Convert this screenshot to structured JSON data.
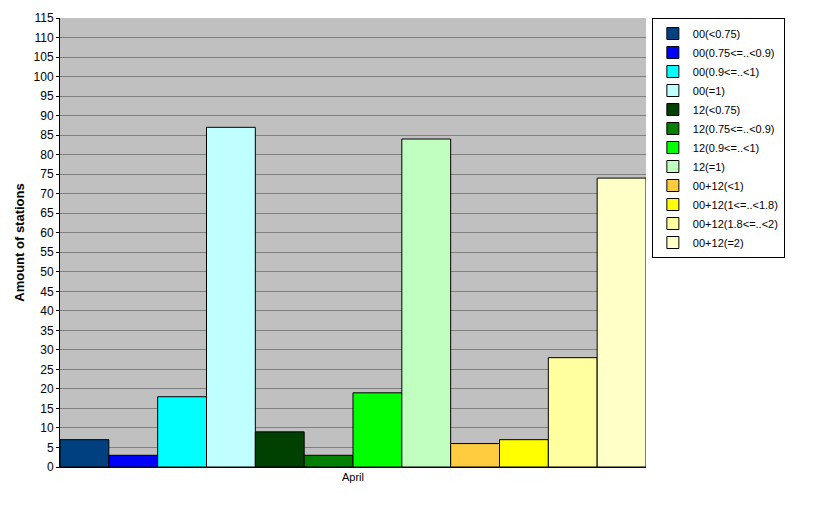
{
  "chart_data": {
    "type": "bar",
    "ylabel": "Amount of stations",
    "categories": [
      "April"
    ],
    "series": [
      {
        "name": "00(<0.75)",
        "color": "#004080",
        "values": [
          7
        ]
      },
      {
        "name": "00(0.75<=..<0.9)",
        "color": "#0000ff",
        "values": [
          3
        ]
      },
      {
        "name": "00(0.9<=..<1)",
        "color": "#00ffff",
        "values": [
          18
        ]
      },
      {
        "name": "00(=1)",
        "color": "#c0ffff",
        "values": [
          87
        ]
      },
      {
        "name": "12(<0.75)",
        "color": "#004000",
        "values": [
          9
        ]
      },
      {
        "name": "12(0.75<=..<0.9)",
        "color": "#008000",
        "values": [
          3
        ]
      },
      {
        "name": "12(0.9<=..<1)",
        "color": "#00ff00",
        "values": [
          19
        ]
      },
      {
        "name": "12(=1)",
        "color": "#c0ffc0",
        "values": [
          84
        ]
      },
      {
        "name": "00+12(<1)",
        "color": "#ffcc40",
        "values": [
          6
        ]
      },
      {
        "name": "00+12(1<=..<1.8)",
        "color": "#ffff00",
        "values": [
          7
        ]
      },
      {
        "name": "00+12(1.8<=..<2)",
        "color": "#ffffa0",
        "values": [
          28
        ]
      },
      {
        "name": "00+12(=2)",
        "color": "#ffffc8",
        "values": [
          74
        ]
      }
    ],
    "ylim": [
      0,
      115
    ],
    "yticks": [
      0,
      5,
      10,
      15,
      20,
      25,
      30,
      35,
      40,
      45,
      50,
      55,
      60,
      65,
      70,
      75,
      80,
      85,
      90,
      95,
      100,
      105,
      110,
      115
    ],
    "grid": true,
    "legend": "top-right"
  }
}
